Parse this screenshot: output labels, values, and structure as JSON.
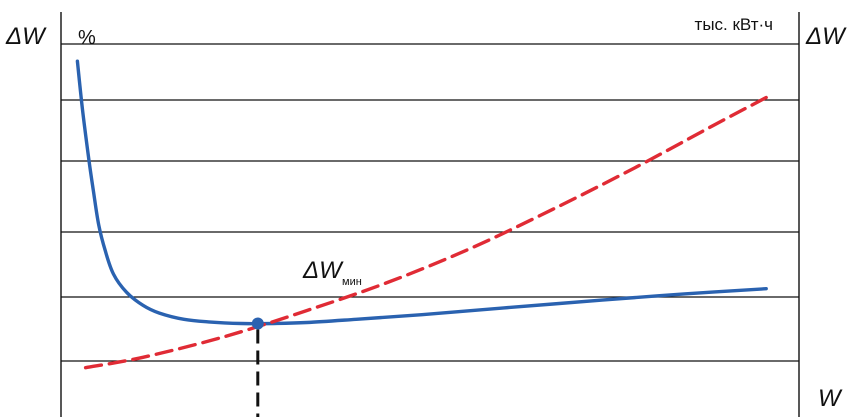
{
  "chart_data": {
    "type": "line",
    "x_label": "W",
    "y_left_label": "ΔW",
    "y_left_unit": "%",
    "y_right_label": "ΔW",
    "y_right_unit": "тыс. кВт·ч",
    "annotation": {
      "main": "ΔW",
      "sub": "мин"
    },
    "gridlines": 6,
    "series": [
      {
        "color": "#2a62b0",
        "style": "solid",
        "points": [
          [
            1.0,
            6.0
          ],
          [
            1.3,
            5.1
          ],
          [
            1.7,
            4.1
          ],
          [
            2.0,
            3.45
          ],
          [
            2.3,
            2.85
          ],
          [
            2.7,
            2.35
          ],
          [
            3.2,
            1.9
          ],
          [
            4.0,
            1.55
          ],
          [
            5.0,
            1.3
          ],
          [
            6.0,
            1.15
          ],
          [
            7.5,
            1.03
          ],
          [
            9.0,
            0.98
          ],
          [
            11.0,
            0.95
          ],
          [
            13.0,
            0.95
          ],
          [
            15.0,
            0.97
          ],
          [
            18.0,
            1.03
          ],
          [
            22.0,
            1.12
          ],
          [
            27.0,
            1.25
          ],
          [
            33.0,
            1.4
          ],
          [
            38.0,
            1.52
          ],
          [
            43.0,
            1.62
          ]
        ]
      },
      {
        "color": "#e02b35",
        "style": "dashed",
        "points": [
          [
            1.5,
            0.1
          ],
          [
            5.0,
            0.3
          ],
          [
            10.0,
            0.7
          ],
          [
            15.0,
            1.2
          ],
          [
            20.0,
            1.75
          ],
          [
            25.0,
            2.4
          ],
          [
            30.0,
            3.15
          ],
          [
            35.0,
            3.95
          ],
          [
            40.0,
            4.8
          ],
          [
            43.0,
            5.3
          ]
        ]
      }
    ],
    "minimum_marker": {
      "x": 12.0,
      "y": 0.95,
      "drop_line": "dashed"
    },
    "xlim": [
      0,
      45
    ],
    "ylim": [
      -0.85,
      6.6
    ]
  }
}
